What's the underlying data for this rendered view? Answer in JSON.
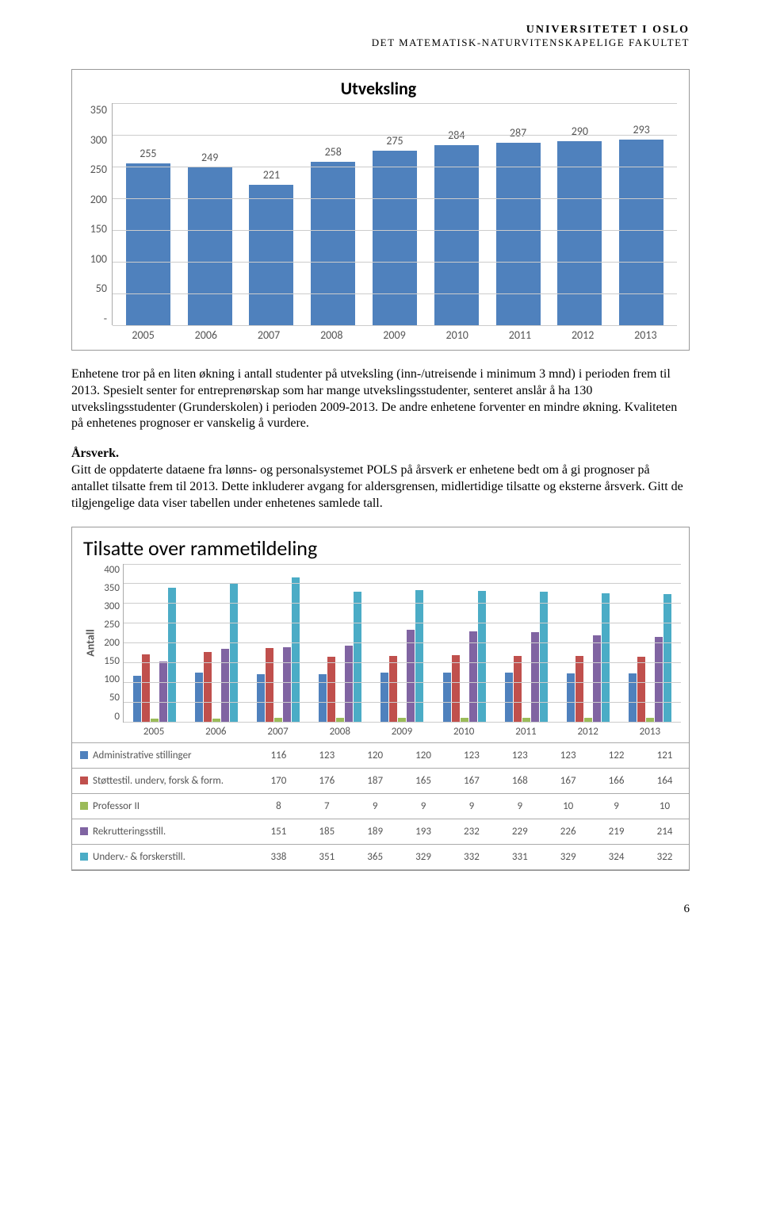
{
  "header": {
    "line1": "UNIVERSITETET I OSLO",
    "line2": "DET MATEMATISK-NATURVITENSKAPELIGE FAKULTET"
  },
  "chart1": {
    "type": "bar",
    "title": "Utveksling",
    "categories": [
      "2005",
      "2006",
      "2007",
      "2008",
      "2009",
      "2010",
      "2011",
      "2012",
      "2013"
    ],
    "values": [
      255,
      249,
      221,
      258,
      275,
      284,
      287,
      290,
      293
    ],
    "bar_color": "#4f81bd",
    "ylim": [
      0,
      350
    ],
    "ytick_step": 50,
    "yticks": [
      "350",
      "300",
      "250",
      "200",
      "150",
      "100",
      "50",
      "-"
    ],
    "label_fontsize": 14,
    "title_fontsize": 22,
    "grid_color": "#cccccc",
    "background_color": "#ffffff"
  },
  "para1": "Enhetene tror på en liten økning i antall studenter på utveksling (inn-/utreisende i minimum 3 mnd) i perioden frem til 2013. Spesielt senter for entreprenørskap som har mange utvekslingsstudenter, senteret anslår å ha 130 utvekslingsstudenter (Grunderskolen) i perioden 2009-2013. De andre enhetene forventer en mindre økning. Kvaliteten på enhetenes prognoser er vanskelig å vurdere.",
  "section_head": "Årsverk.",
  "para2": "Gitt de oppdaterte dataene fra lønns- og personalsystemet POLS på årsverk er enhetene bedt om å gi prognoser på antallet tilsatte frem til 2013. Dette inkluderer avgang for aldersgrensen, midlertidige tilsatte og eksterne årsverk. Gitt de tilgjengelige data viser tabellen under enhetenes samlede tall.",
  "chart2": {
    "type": "grouped-bar-with-table",
    "title": "Tilsatte over rammetildeling",
    "ylabel": "Antall",
    "categories": [
      "2005",
      "2006",
      "2007",
      "2008",
      "2009",
      "2010",
      "2011",
      "2012",
      "2013"
    ],
    "ylim": [
      0,
      400
    ],
    "ytick_step": 50,
    "yticks": [
      "400",
      "350",
      "300",
      "250",
      "200",
      "150",
      "100",
      "50",
      "0"
    ],
    "series": [
      {
        "name": "Administrative stillinger",
        "color": "#4f81bd",
        "values": [
          116,
          123,
          120,
          120,
          123,
          123,
          123,
          122,
          121
        ]
      },
      {
        "name": "Støttestil. underv, forsk & form.",
        "color": "#c0504d",
        "values": [
          170,
          176,
          187,
          165,
          167,
          168,
          167,
          166,
          164
        ]
      },
      {
        "name": "Professor II",
        "color": "#9bbb59",
        "values": [
          8,
          7,
          9,
          9,
          9,
          9,
          10,
          9,
          10
        ]
      },
      {
        "name": "Rekrutteringsstill.",
        "color": "#8064a2",
        "values": [
          151,
          185,
          189,
          193,
          232,
          229,
          226,
          219,
          214
        ]
      },
      {
        "name": "Underv.- & forskerstill.",
        "color": "#4bacc6",
        "values": [
          338,
          351,
          365,
          329,
          332,
          331,
          329,
          324,
          322
        ]
      }
    ],
    "grid_color": "#cccccc",
    "label_fontsize": 13,
    "title_fontsize": 26
  },
  "page_number": "6"
}
